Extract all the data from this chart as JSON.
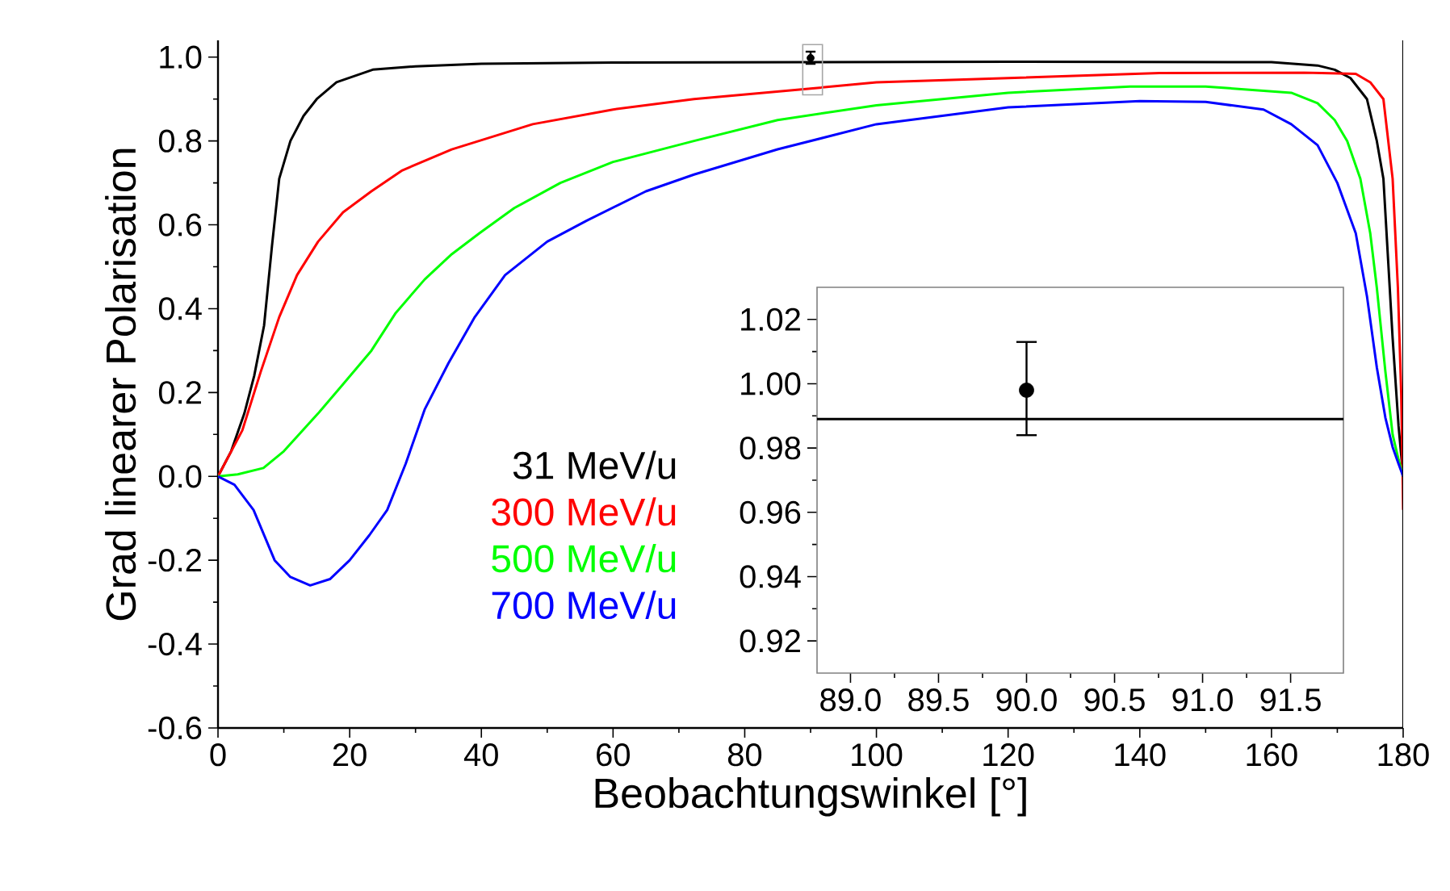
{
  "chart_data": [
    {
      "type": "line",
      "xlabel": "Beobachtungswinkel [°]",
      "ylabel": "Grad linearer Polarisation",
      "xlim": [
        0,
        180
      ],
      "ylim": [
        -0.6,
        1.04
      ],
      "xticks": [
        0,
        20,
        40,
        60,
        80,
        100,
        120,
        140,
        160,
        180
      ],
      "yticks": [
        {
          "value": -0.6,
          "label": "-0.6"
        },
        {
          "value": -0.4,
          "label": "-0.4"
        },
        {
          "value": -0.2,
          "label": "-0.2"
        },
        {
          "value": 0,
          "label": "0.0"
        },
        {
          "value": 0.2,
          "label": "0.2"
        },
        {
          "value": 0.4,
          "label": "0.4"
        },
        {
          "value": 0.6,
          "label": "0.6"
        },
        {
          "value": 0.8,
          "label": "0.8"
        },
        {
          "value": 1.0,
          "label": "1.0"
        }
      ],
      "legend": "bottom left",
      "series": [
        {
          "name": "31 MeV/u",
          "color": "#000000",
          "x": [
            0,
            2,
            4,
            5.5,
            7,
            8.2,
            9.3,
            11,
            13,
            15,
            18,
            23.5,
            30,
            40,
            60,
            90,
            120,
            160,
            167,
            169.6,
            172,
            174.5,
            176,
            177,
            178.4,
            179.3,
            180
          ],
          "values": [
            0,
            0.06,
            0.15,
            0.24,
            0.36,
            0.55,
            0.71,
            0.8,
            0.86,
            0.9,
            0.94,
            0.97,
            0.978,
            0.984,
            0.987,
            0.988,
            0.989,
            0.988,
            0.98,
            0.97,
            0.95,
            0.9,
            0.8,
            0.71,
            0.33,
            0.12,
            0
          ]
        },
        {
          "name": "300 MeV/u",
          "color": "#ff0000",
          "x": [
            0,
            3.7,
            6.5,
            9.3,
            12,
            15.2,
            19,
            23.3,
            28,
            35.5,
            47.8,
            60,
            72.3,
            90,
            100,
            120,
            143,
            165,
            172.8,
            175,
            177,
            178.4,
            179.2,
            179.7,
            180
          ],
          "values": [
            0,
            0.11,
            0.25,
            0.38,
            0.48,
            0.56,
            0.63,
            0.68,
            0.73,
            0.78,
            0.84,
            0.875,
            0.9,
            0.925,
            0.94,
            0.95,
            0.962,
            0.963,
            0.96,
            0.94,
            0.9,
            0.71,
            0.45,
            0.2,
            -0.08
          ]
        },
        {
          "name": "500 MeV/u",
          "color": "#00ff00",
          "x": [
            0,
            3,
            6.9,
            10,
            15.2,
            19,
            23.3,
            27,
            31.4,
            35.5,
            39.7,
            45,
            52,
            60,
            72.3,
            85,
            100,
            120,
            138.5,
            150,
            163,
            167,
            169.6,
            171.5,
            173.5,
            175,
            176,
            177.3,
            178.4,
            179.3,
            180
          ],
          "values": [
            0,
            0.005,
            0.02,
            0.06,
            0.15,
            0.22,
            0.3,
            0.39,
            0.47,
            0.53,
            0.58,
            0.64,
            0.7,
            0.75,
            0.8,
            0.85,
            0.885,
            0.915,
            0.93,
            0.93,
            0.915,
            0.89,
            0.85,
            0.8,
            0.71,
            0.58,
            0.45,
            0.25,
            0.1,
            0.04,
            0
          ]
        },
        {
          "name": "700 MeV/u",
          "color": "#0000ff",
          "x": [
            0,
            2.5,
            5.4,
            8.6,
            11,
            14,
            17,
            20,
            23,
            25.7,
            28.5,
            31.4,
            35,
            39,
            43.6,
            50,
            56,
            65,
            72.3,
            85,
            100,
            120,
            140,
            150,
            158.8,
            163,
            167,
            170,
            172.8,
            174.5,
            176,
            177.3,
            178.4,
            179.3,
            180
          ],
          "values": [
            0,
            -0.02,
            -0.08,
            -0.2,
            -0.24,
            -0.26,
            -0.245,
            -0.2,
            -0.14,
            -0.08,
            0.03,
            0.16,
            0.27,
            0.38,
            0.48,
            0.56,
            0.61,
            0.68,
            0.72,
            0.78,
            0.84,
            0.88,
            0.895,
            0.893,
            0.875,
            0.84,
            0.79,
            0.7,
            0.58,
            0.43,
            0.26,
            0.14,
            0.07,
            0.03,
            0
          ]
        },
        {
          "type": "scatter",
          "color": "#000000",
          "marker": "circle",
          "x": [
            90
          ],
          "values": [
            0.998
          ],
          "errors": [
            [
              0.984,
              1.013
            ]
          ]
        }
      ]
    },
    {
      "type": "line",
      "xlim": [
        88.81,
        91.8
      ],
      "ylim": [
        0.91,
        1.03
      ],
      "xticks": [
        {
          "value": 89.0,
          "label": "89.0"
        },
        {
          "value": 89.5,
          "label": "89.5"
        },
        {
          "value": 90.0,
          "label": "90.0"
        },
        {
          "value": 90.5,
          "label": "90.5"
        },
        {
          "value": 91.0,
          "label": "91.0"
        },
        {
          "value": 91.5,
          "label": "91.5"
        }
      ],
      "yticks": [
        {
          "value": 0.92,
          "label": "0.92"
        },
        {
          "value": 0.94,
          "label": "0.94"
        },
        {
          "value": 0.96,
          "label": "0.96"
        },
        {
          "value": 0.98,
          "label": "0.98"
        },
        {
          "value": 1.0,
          "label": "1.00"
        },
        {
          "value": 1.02,
          "label": "1.02"
        }
      ],
      "series": [
        {
          "color": "#000000",
          "x": [
            88.81,
            91.8
          ],
          "values": [
            0.989,
            0.989
          ]
        },
        {
          "type": "scatter",
          "color": "#000000",
          "marker": "circle",
          "x": [
            90
          ],
          "values": [
            0.998
          ],
          "errors": [
            [
              0.984,
              1.013
            ]
          ]
        }
      ]
    }
  ]
}
